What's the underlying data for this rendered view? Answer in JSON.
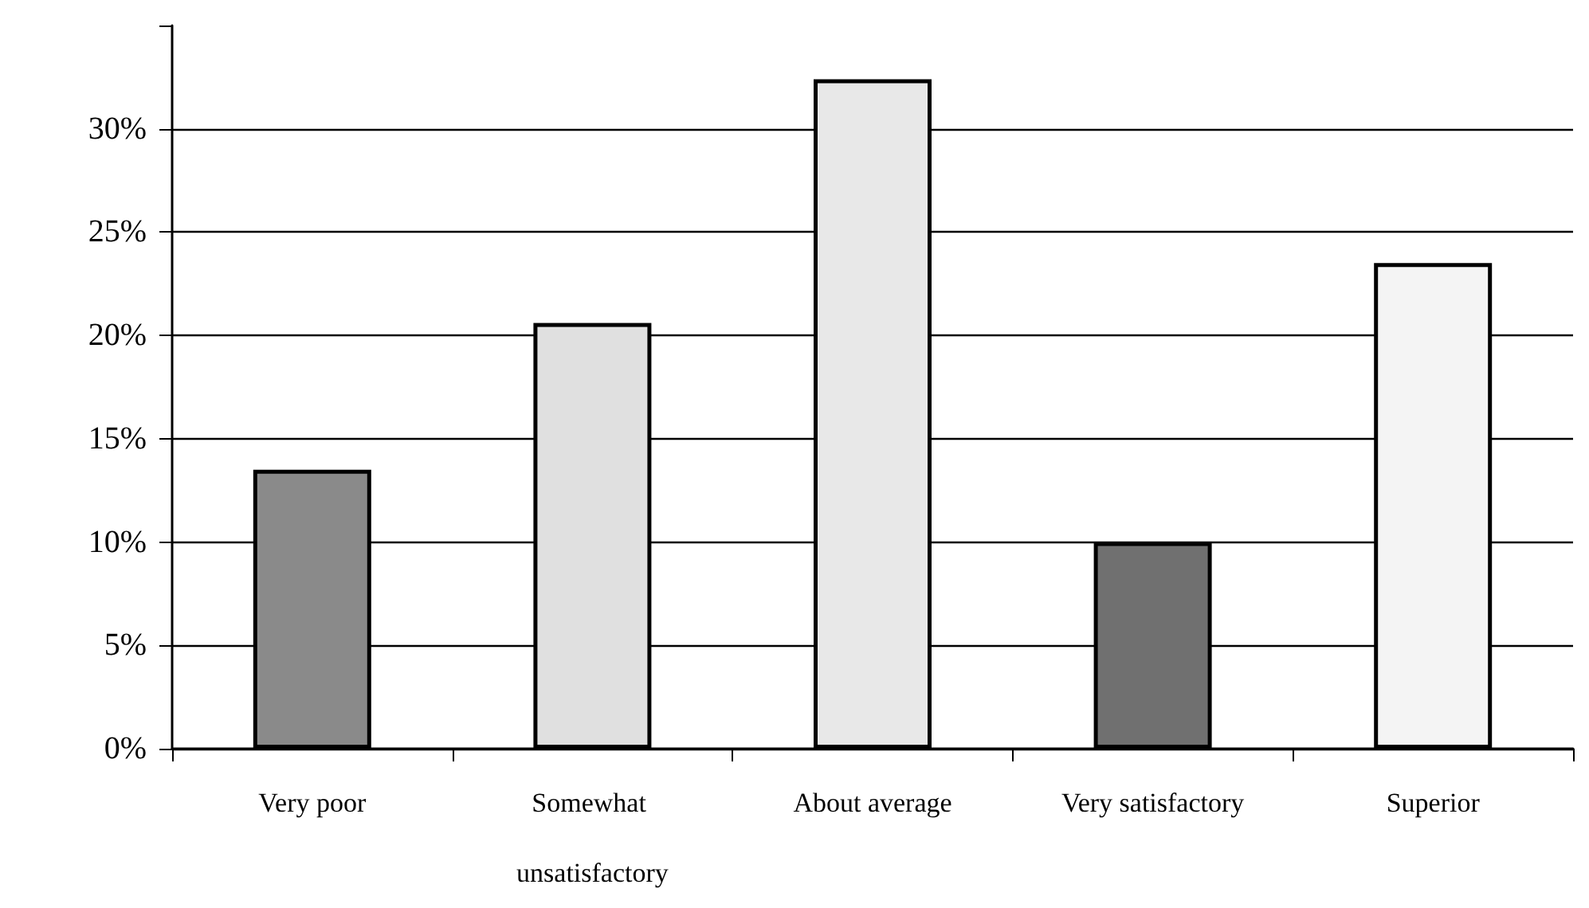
{
  "chart_data": {
    "type": "bar",
    "categories": [
      "Very poor",
      "Somewhat unsatisfactory",
      "About average",
      "Very satisfactory",
      "Superior"
    ],
    "values": [
      13.5,
      20.6,
      32.4,
      10.0,
      23.5
    ],
    "colors": [
      "#8a8a8a",
      "#e0e0e0",
      "#e8e8e8",
      "#707070",
      "#f4f4f4"
    ],
    "ylim": [
      0,
      35
    ],
    "yticks": [
      {
        "value": 0,
        "label": "0%"
      },
      {
        "value": 5,
        "label": "5%"
      },
      {
        "value": 10,
        "label": "10%"
      },
      {
        "value": 15,
        "label": "15%"
      },
      {
        "value": 20,
        "label": "20%"
      },
      {
        "value": 25,
        "label": "25%"
      },
      {
        "value": 30,
        "label": "30%"
      },
      {
        "value": 35,
        "label": null
      }
    ],
    "grid": "y"
  }
}
